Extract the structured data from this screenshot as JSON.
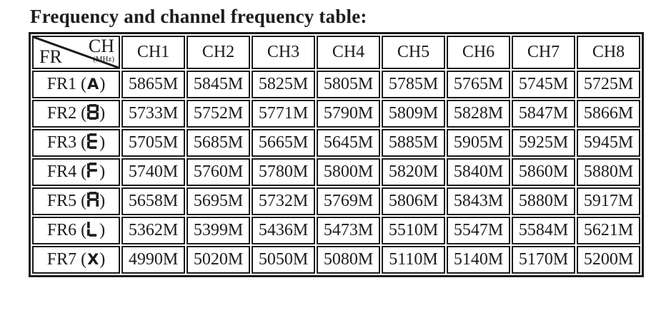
{
  "title": "Frequency and channel frequency table:",
  "colors": {
    "text": "#1c1c1c",
    "border": "#1c1c1c",
    "background": "#ffffff"
  },
  "table": {
    "corner": {
      "top_label": "CH",
      "top_unit": "(MHz)",
      "bottom_label": "FR"
    },
    "paren_open": "(",
    "paren_close": ")",
    "columns": [
      "CH1",
      "CH2",
      "CH3",
      "CH4",
      "CH5",
      "CH6",
      "CH7",
      "CH8"
    ],
    "rows": [
      {
        "label": "FR1",
        "band_letter": "A",
        "values": [
          "5865M",
          "5845M",
          "5825M",
          "5805M",
          "5785M",
          "5765M",
          "5745M",
          "5725M"
        ]
      },
      {
        "label": "FR2",
        "band_letter": "B",
        "values": [
          "5733M",
          "5752M",
          "5771M",
          "5790M",
          "5809M",
          "5828M",
          "5847M",
          "5866M"
        ]
      },
      {
        "label": "FR3",
        "band_letter": "E",
        "values": [
          "5705M",
          "5685M",
          "5665M",
          "5645M",
          "5885M",
          "5905M",
          "5925M",
          "5945M"
        ]
      },
      {
        "label": "FR4",
        "band_letter": "F",
        "values": [
          "5740M",
          "5760M",
          "5780M",
          "5800M",
          "5820M",
          "5840M",
          "5860M",
          "5880M"
        ]
      },
      {
        "label": "FR5",
        "band_letter": "R",
        "values": [
          "5658M",
          "5695M",
          "5732M",
          "5769M",
          "5806M",
          "5843M",
          "5880M",
          "5917M"
        ]
      },
      {
        "label": "FR6",
        "band_letter": "L",
        "values": [
          "5362M",
          "5399M",
          "5436M",
          "5473M",
          "5510M",
          "5547M",
          "5584M",
          "5621M"
        ]
      },
      {
        "label": "FR7",
        "band_letter": "X",
        "values": [
          "4990M",
          "5020M",
          "5050M",
          "5080M",
          "5110M",
          "5140M",
          "5170M",
          "5200M"
        ]
      }
    ]
  }
}
